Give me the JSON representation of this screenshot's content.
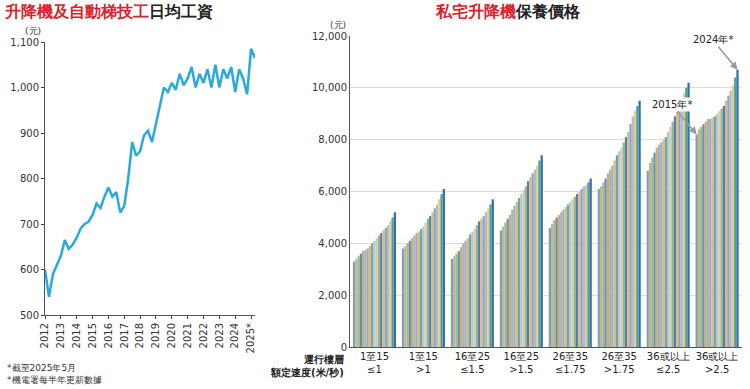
{
  "chart_data": [
    {
      "type": "line",
      "title": [
        {
          "text": "升降機及自動梯技工",
          "color": "#d9232d"
        },
        {
          "text": "日均工資",
          "color": "#222222"
        }
      ],
      "ylabel": "(元)",
      "categories": [
        "2012",
        null,
        null,
        null,
        "2013",
        null,
        null,
        null,
        "2014",
        null,
        null,
        null,
        "2015",
        null,
        null,
        null,
        "2016",
        null,
        null,
        null,
        "2017",
        null,
        null,
        null,
        "2018",
        null,
        null,
        null,
        "2019",
        null,
        null,
        null,
        "2020",
        null,
        null,
        null,
        "2021",
        null,
        null,
        null,
        "2022",
        null,
        null,
        null,
        "2023",
        null,
        null,
        null,
        "2024",
        null,
        null,
        null,
        "2025*",
        null
      ],
      "values": [
        600,
        540,
        590,
        610,
        630,
        665,
        645,
        655,
        670,
        690,
        700,
        705,
        720,
        745,
        735,
        760,
        780,
        760,
        770,
        725,
        740,
        800,
        880,
        850,
        860,
        895,
        905,
        880,
        920,
        960,
        1000,
        990,
        1010,
        995,
        1030,
        1005,
        1020,
        1045,
        1000,
        1030,
        1010,
        1040,
        1000,
        1050,
        1000,
        1040,
        1020,
        1045,
        990,
        1040,
        1020,
        985,
        1085,
        1065
      ],
      "color": "#29a9e0",
      "ylim": [
        500,
        1100
      ],
      "yticks": [
        500,
        600,
        700,
        800,
        900,
        {
          "value": 1000,
          "label": "1,000"
        },
        {
          "value": 1100,
          "label": "1,100"
        }
      ],
      "grid": false,
      "notes": [
        "*截至2025年5月",
        "*機電署每半年更新數據"
      ]
    },
    {
      "type": "bar",
      "title": [
        {
          "text": "私宅升降機",
          "color": "#d9232d"
        },
        {
          "text": "保養價格",
          "color": "#222222"
        }
      ],
      "ylabel": "(元)",
      "category_headers": [
        "運行樓層",
        "額定速度(米/秒)"
      ],
      "categories": [
        [
          "1至15",
          "≤1"
        ],
        [
          "1至15",
          ">1"
        ],
        [
          "16至25",
          "≤1.5"
        ],
        [
          "16至25",
          ">1.5"
        ],
        [
          "26至35",
          "≤1.75"
        ],
        [
          "26至35",
          ">1.75"
        ],
        [
          "36或以上",
          "≤2.5"
        ],
        [
          "36或以上",
          ">2.5"
        ]
      ],
      "series": [
        {
          "color": "#7f9fbf",
          "values": [
            3300,
            3800,
            3400,
            4500,
            4600,
            6100,
            6800,
            8200
          ]
        },
        {
          "color": "#c8b48a",
          "values": [
            3400,
            3900,
            3500,
            4650,
            4750,
            6200,
            7100,
            8400
          ]
        },
        {
          "color": "#9dbf7a",
          "values": [
            3500,
            4000,
            3600,
            4800,
            4900,
            6350,
            7300,
            8500
          ]
        },
        {
          "color": "#5b8fc7",
          "values": [
            3600,
            4100,
            3700,
            4950,
            5000,
            6500,
            7500,
            8600
          ]
        },
        {
          "color": "#e0a860",
          "values": [
            3700,
            4200,
            3850,
            5100,
            5100,
            6700,
            7700,
            8700
          ]
        },
        {
          "color": "#8bc0c8",
          "values": [
            3750,
            4300,
            4000,
            5300,
            5200,
            6850,
            7800,
            8800
          ]
        },
        {
          "color": "#b7a0c8",
          "values": [
            3800,
            4400,
            4100,
            5450,
            5300,
            7000,
            7900,
            8800
          ]
        },
        {
          "color": "#d4c070",
          "values": [
            3900,
            4450,
            4200,
            5600,
            5400,
            7200,
            8000,
            8850
          ]
        },
        {
          "color": "#6fa8a0",
          "values": [
            4000,
            4550,
            4350,
            5750,
            5500,
            7400,
            8100,
            8900
          ]
        },
        {
          "color": "#a8c8e8",
          "values": [
            4100,
            4650,
            4450,
            5900,
            5600,
            7550,
            8300,
            9000
          ]
        },
        {
          "color": "#e8c8a0",
          "values": [
            4200,
            4800,
            4550,
            6050,
            5700,
            7700,
            8500,
            9100
          ]
        },
        {
          "color": "#90b890",
          "values": [
            4300,
            4950,
            4700,
            6200,
            5800,
            7900,
            8700,
            9200
          ]
        },
        {
          "color": "#4f7fb8",
          "values": [
            4400,
            5050,
            4850,
            6400,
            5900,
            8100,
            8900,
            9300
          ]
        },
        {
          "color": "#f0b070",
          "values": [
            4500,
            5200,
            4950,
            6550,
            6000,
            8300,
            9100,
            9500
          ]
        },
        {
          "color": "#70b0c0",
          "values": [
            4600,
            5350,
            5050,
            6700,
            6100,
            8600,
            9300,
            9700
          ]
        },
        {
          "color": "#c0b0d8",
          "values": [
            4700,
            5500,
            5200,
            6850,
            6200,
            8900,
            9500,
            9900
          ]
        },
        {
          "color": "#e0d080",
          "values": [
            4850,
            5700,
            5350,
            7000,
            6250,
            9100,
            9800,
            10100
          ]
        },
        {
          "color": "#50a098",
          "values": [
            5000,
            5900,
            5500,
            7200,
            6350,
            9300,
            10000,
            10400
          ]
        },
        {
          "color": "#3070b0",
          "values": [
            5200,
            6100,
            5700,
            7400,
            6500,
            9500,
            10200,
            10700
          ]
        }
      ],
      "ylim": [
        0,
        12000
      ],
      "yticks": [
        0,
        {
          "value": 2000,
          "label": "2,000"
        },
        {
          "value": 4000,
          "label": "4,000"
        },
        {
          "value": 6000,
          "label": "6,000"
        },
        {
          "value": 8000,
          "label": "8,000"
        },
        {
          "value": 10000,
          "label": "10,000"
        },
        {
          "value": 12000,
          "label": "12,000"
        }
      ],
      "grid": true,
      "annotations": [
        {
          "text": "2015年*",
          "series": 0,
          "category": 7
        },
        {
          "text": "2024年*",
          "series": 18,
          "category": 7
        }
      ]
    }
  ]
}
